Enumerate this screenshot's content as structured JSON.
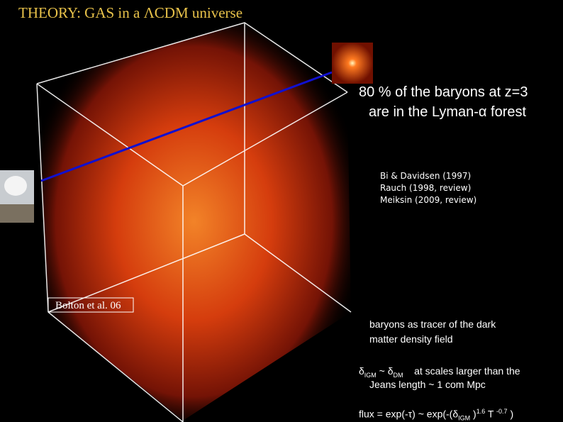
{
  "title": "THEORY: GAS in a ΛCDM universe",
  "headline": {
    "line1": "80 % of the baryons at z=3",
    "line2": "are in the Lyman-α forest"
  },
  "references": [
    "Bi & Davidsen (1997)",
    "Rauch (1998, review)",
    "Meiksin (2009, review)"
  ],
  "credit": "Bolton et al. 06",
  "tracer_note": {
    "line1": "baryons as tracer of the dark",
    "line2": "matter density field"
  },
  "delta_relation": {
    "start": "δ",
    "sub1": "IGM",
    "mid": " ~ δ",
    "sub2": "DM",
    "tail": "at scales larger than the",
    "line2": "Jeans length ~ 1 com Mpc"
  },
  "flux_relation": {
    "start": "flux = exp(-τ) ~ exp(-(δ",
    "sub": "IGM",
    "mid": " )",
    "sup1": "1.6",
    "between": " T ",
    "sup2": "-0.7",
    "end": " )"
  }
}
